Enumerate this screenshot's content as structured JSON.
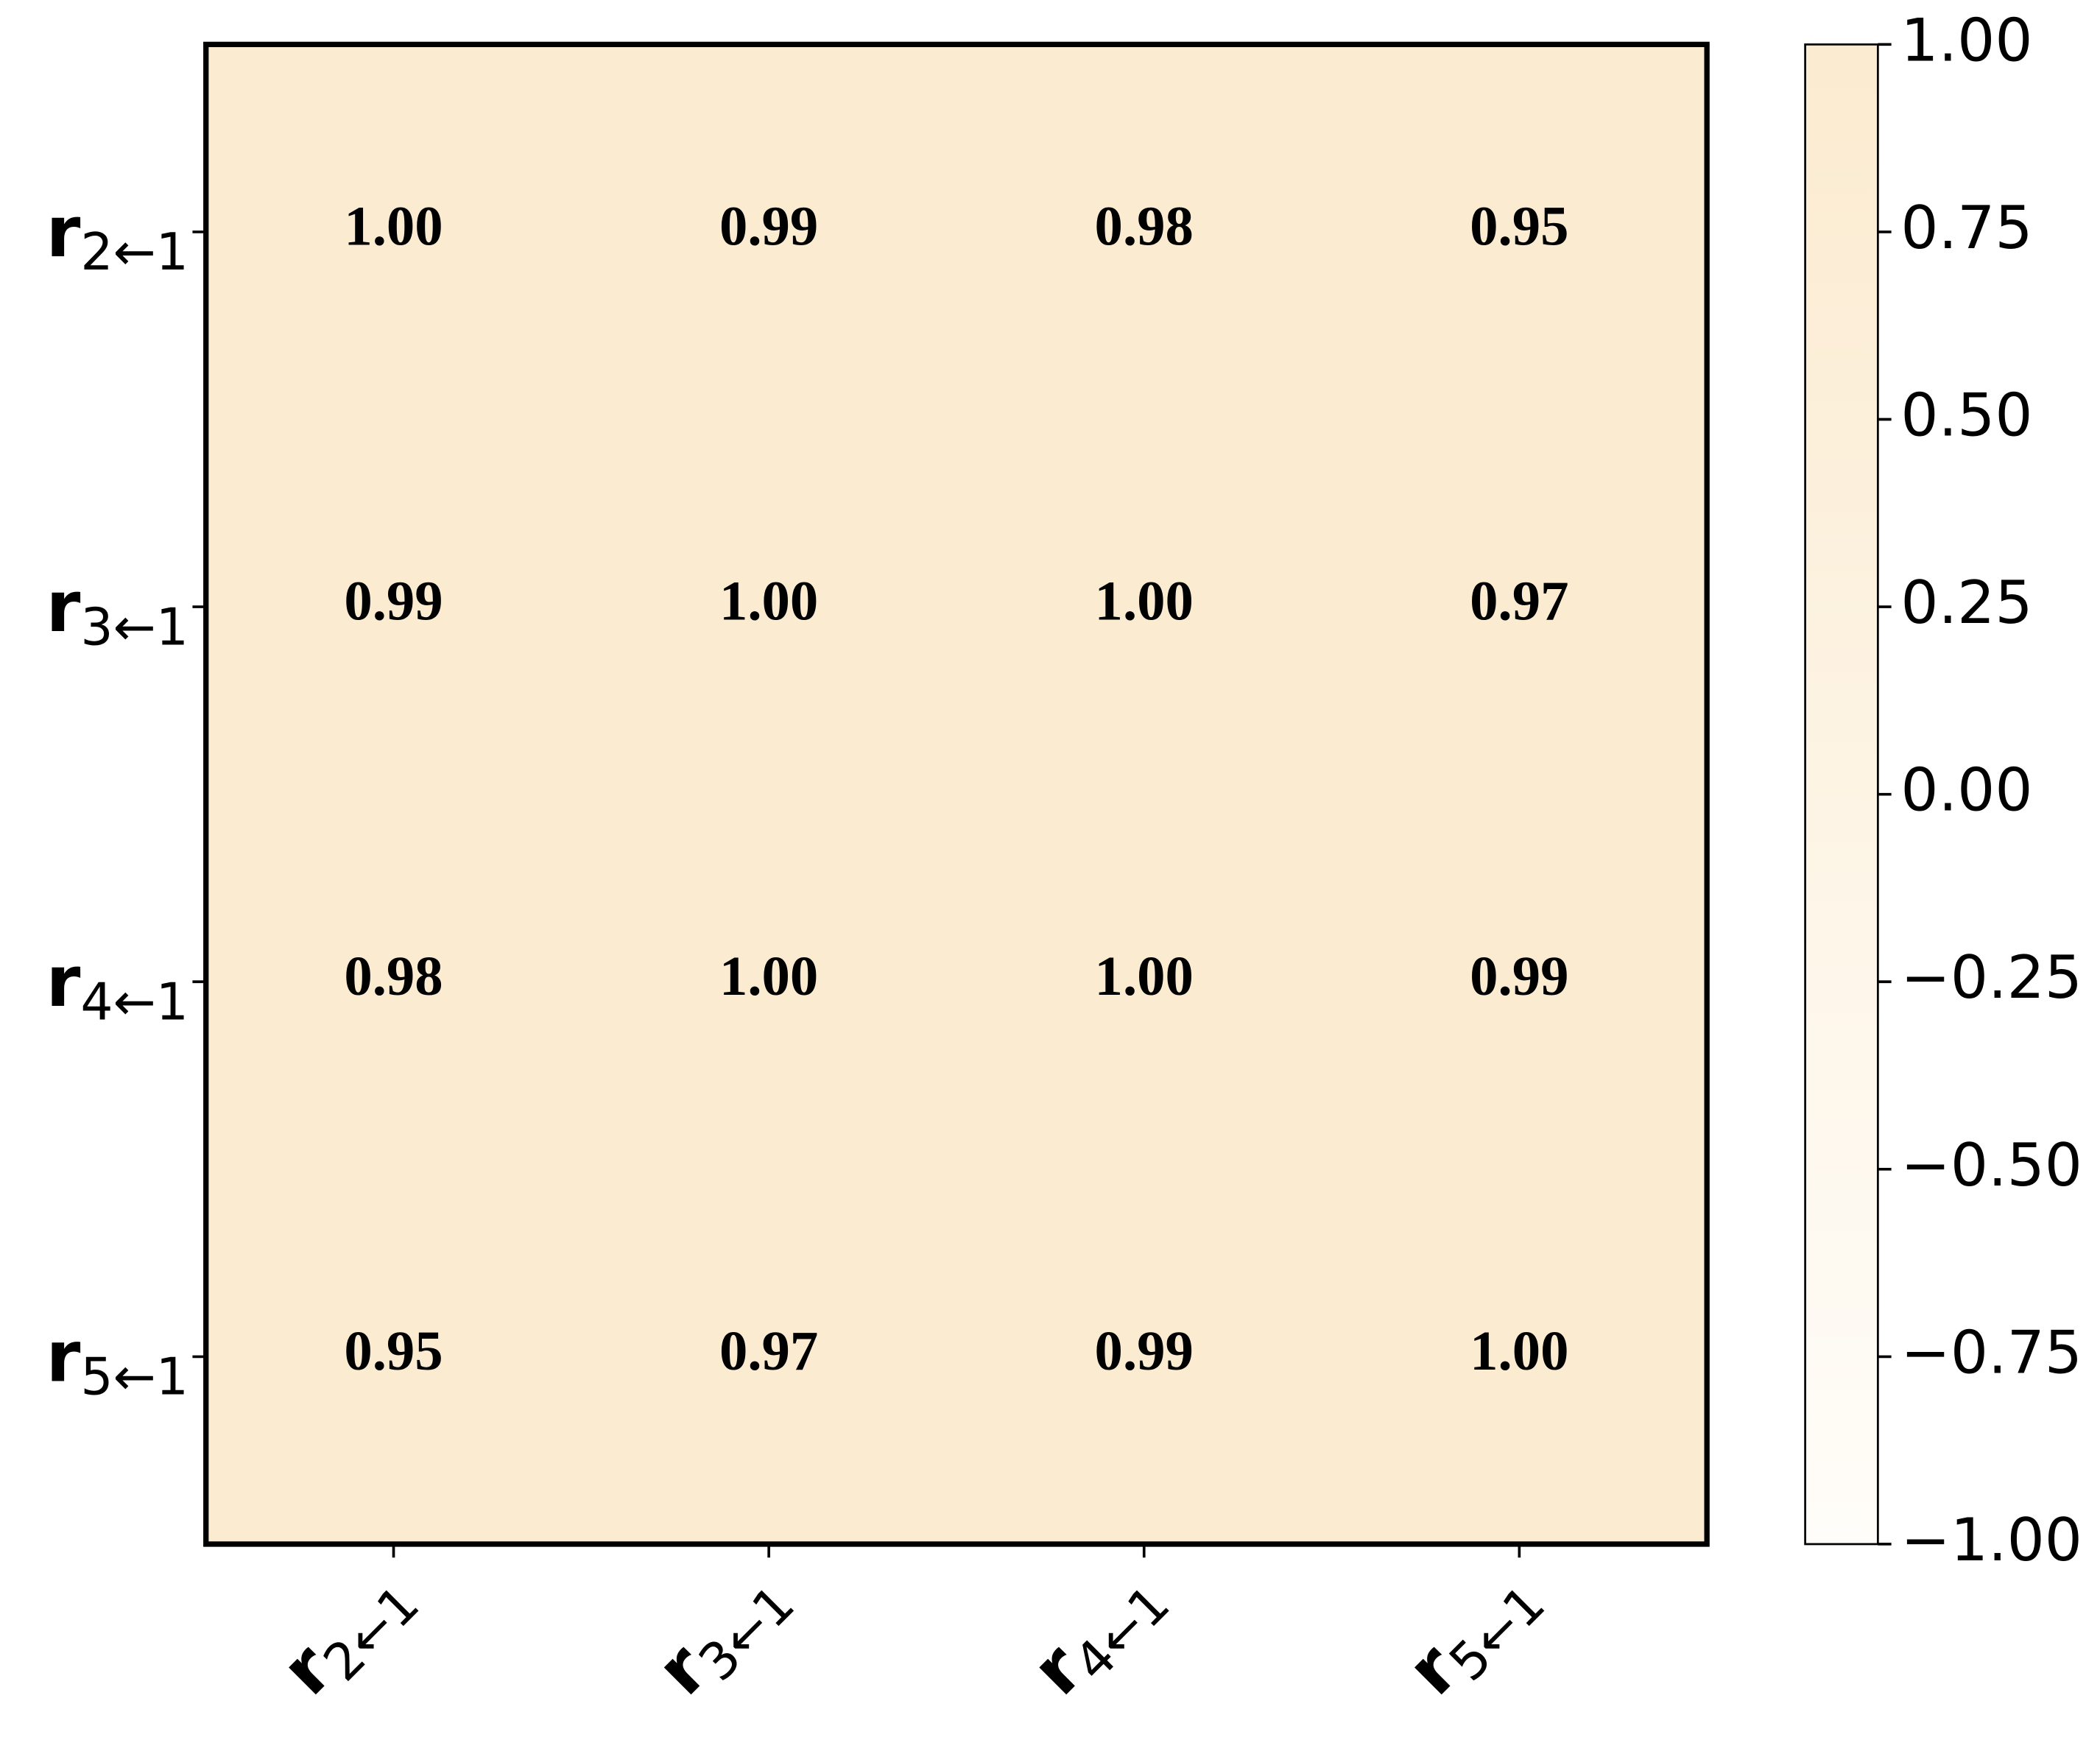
{
  "chart_data": {
    "type": "heatmap",
    "x_categories": [
      {
        "symbol": "r",
        "subscript": "2←1"
      },
      {
        "symbol": "r",
        "subscript": "3←1"
      },
      {
        "symbol": "r",
        "subscript": "4←1"
      },
      {
        "symbol": "r",
        "subscript": "5←1"
      }
    ],
    "y_categories": [
      {
        "symbol": "r",
        "subscript": "2←1"
      },
      {
        "symbol": "r",
        "subscript": "3←1"
      },
      {
        "symbol": "r",
        "subscript": "4←1"
      },
      {
        "symbol": "r",
        "subscript": "5←1"
      }
    ],
    "values": [
      [
        1.0,
        0.99,
        0.98,
        0.95
      ],
      [
        0.99,
        1.0,
        1.0,
        0.97
      ],
      [
        0.98,
        1.0,
        1.0,
        0.99
      ],
      [
        0.95,
        0.97,
        0.99,
        1.0
      ]
    ],
    "value_labels": [
      [
        "1.00",
        "0.99",
        "0.98",
        "0.95"
      ],
      [
        "0.99",
        "1.00",
        "1.00",
        "0.97"
      ],
      [
        "0.98",
        "1.00",
        "1.00",
        "0.99"
      ],
      [
        "0.95",
        "0.97",
        "0.99",
        "1.00"
      ]
    ],
    "colormap": [
      "#fffdf9",
      "#fbebd0"
    ],
    "clim": [
      -1,
      1
    ],
    "cticks": [
      {
        "value": -1,
        "label": "−1.00"
      },
      {
        "value": -0.75,
        "label": "−0.75"
      },
      {
        "value": -0.5,
        "label": "−0.50"
      },
      {
        "value": -0.25,
        "label": "−0.25"
      },
      {
        "value": 0,
        "label": "0.00"
      },
      {
        "value": 0.25,
        "label": "0.25"
      },
      {
        "value": 0.5,
        "label": "0.50"
      },
      {
        "value": 0.75,
        "label": "0.75"
      },
      {
        "value": 1,
        "label": "1.00"
      }
    ]
  }
}
